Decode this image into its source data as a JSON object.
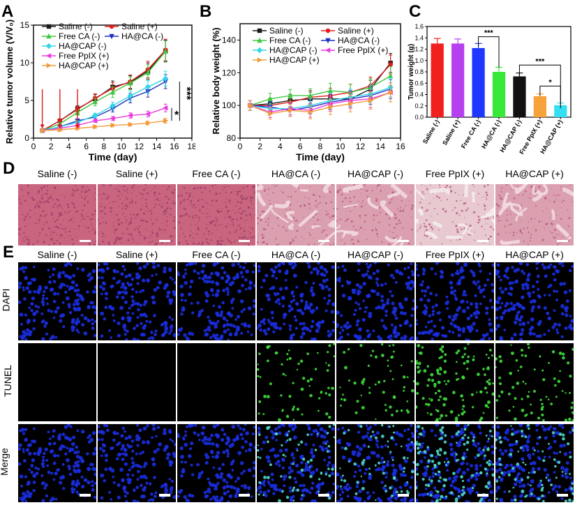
{
  "panels": {
    "A": "A",
    "B": "B",
    "C": "C",
    "D": "D",
    "E": "E"
  },
  "legend_names": [
    "Saline (-)",
    "Saline (+)",
    "Free CA (-)",
    "HA@CA (-)",
    "HA@CAP (-)",
    "Free PpIX (+)",
    "HA@CAP (+)"
  ],
  "colors": {
    "saline_neg": "#1a1a1a",
    "saline_pos": "#e31a1c",
    "free_ca": "#3ec83e",
    "ha_ca": "#1f2fbf",
    "ha_cap_neg": "#33d6e8",
    "free_ppix": "#e83be0",
    "ha_cap_pos": "#f39a3a"
  },
  "chart_data": [
    {
      "type": "line",
      "panel": "A",
      "title": "",
      "xlabel": "Time (day)",
      "ylabel": "Relative tumor volume (V/V₀)",
      "x": [
        1,
        3,
        5,
        7,
        9,
        11,
        13,
        15
      ],
      "xlim": [
        0,
        18
      ],
      "ylim": [
        0,
        15
      ],
      "xticks": [
        "0",
        "2",
        "4",
        "6",
        "8",
        "10",
        "12",
        "14",
        "16",
        "18"
      ],
      "yticks": [
        "0",
        "5",
        "10",
        "15"
      ],
      "series": [
        {
          "name": "Saline (-)",
          "values": [
            1.0,
            2.3,
            3.9,
            5.2,
            6.8,
            7.4,
            8.9,
            11.6
          ]
        },
        {
          "name": "Saline (+)",
          "values": [
            1.0,
            2.3,
            3.8,
            5.3,
            6.6,
            7.5,
            9.1,
            11.7
          ]
        },
        {
          "name": "Free CA (-)",
          "values": [
            1.0,
            1.9,
            3.4,
            4.8,
            6.1,
            7.3,
            8.7,
            11.5
          ]
        },
        {
          "name": "HA@CA (-)",
          "values": [
            1.0,
            1.5,
            2.3,
            2.8,
            3.9,
            5.3,
            6.2,
            7.5
          ]
        },
        {
          "name": "HA@CAP (-)",
          "values": [
            1.0,
            1.5,
            2.1,
            3.0,
            4.3,
            5.6,
            6.8,
            7.9
          ]
        },
        {
          "name": "Free PpIX (+)",
          "values": [
            1.0,
            1.3,
            1.7,
            2.3,
            2.6,
            3.0,
            3.2,
            4.0
          ]
        },
        {
          "name": "HA@CAP (+)",
          "values": [
            1.0,
            1.1,
            1.3,
            1.5,
            1.7,
            1.8,
            2.0,
            2.3
          ]
        }
      ],
      "annotations": [
        "*",
        "***"
      ]
    },
    {
      "type": "line",
      "panel": "B",
      "title": "",
      "xlabel": "Time (day)",
      "ylabel": "Relative body weight (%)",
      "x": [
        1,
        3,
        5,
        7,
        9,
        11,
        13,
        15
      ],
      "xlim": [
        0,
        16
      ],
      "ylim": [
        80,
        150
      ],
      "xticks": [
        "0",
        "2",
        "4",
        "6",
        "8",
        "10",
        "12",
        "14",
        "16"
      ],
      "yticks": [
        "80",
        "100",
        "120",
        "140"
      ],
      "series": [
        {
          "name": "Saline (-)",
          "values": [
            100,
            101,
            103,
            104,
            104,
            104,
            110,
            126
          ]
        },
        {
          "name": "Saline (+)",
          "values": [
            100,
            100,
            102,
            105,
            106,
            108,
            112,
            125
          ]
        },
        {
          "name": "Free CA (-)",
          "values": [
            100,
            104,
            106,
            106,
            109,
            108,
            111,
            118
          ]
        },
        {
          "name": "HA@CA (-)",
          "values": [
            100,
            99,
            97,
            99,
            102,
            104,
            106,
            110
          ]
        },
        {
          "name": "HA@CAP (-)",
          "values": [
            100,
            98,
            98,
            100,
            103,
            105,
            107,
            111
          ]
        },
        {
          "name": "Free PpIX (+)",
          "values": [
            100,
            96,
            98,
            97,
            101,
            103,
            104,
            108
          ]
        },
        {
          "name": "HA@CAP (+)",
          "values": [
            100,
            95,
            97,
            96,
            99,
            101,
            103,
            108
          ]
        }
      ]
    },
    {
      "type": "bar",
      "panel": "C",
      "title": "",
      "xlabel": "",
      "ylabel": "Tumor weight (g)",
      "categories": [
        "Saline (-)",
        "Saline (+)",
        "Free CA (-)",
        "HA@CA (-)",
        "HA@CAP (-)",
        "Free PpIX (+)",
        "HA@CAP (+)"
      ],
      "values": [
        1.3,
        1.3,
        1.22,
        0.8,
        0.72,
        0.37,
        0.21
      ],
      "errors": [
        0.09,
        0.08,
        0.08,
        0.08,
        0.06,
        0.04,
        0.04
      ],
      "ylim": [
        0,
        1.6
      ],
      "yticks": [
        "0.0",
        "0.2",
        "0.4",
        "0.6",
        "0.8",
        "1.0",
        "1.2",
        "1.4",
        "1.6"
      ],
      "annotations": [
        "***",
        "***",
        "*"
      ]
    }
  ],
  "he": {
    "label": "D",
    "titles": [
      "Saline (-)",
      "Saline (+)",
      "Free CA (-)",
      "HA@CA (-)",
      "HA@CAP (-)",
      "Free PpIX (+)",
      "HA@CAP (+)"
    ]
  },
  "tunel": {
    "label": "E",
    "titles": [
      "Saline (-)",
      "Saline (+)",
      "Free CA (-)",
      "HA@CA (-)",
      "HA@CAP (-)",
      "Free PpIX (+)",
      "HA@CAP (+)"
    ],
    "rows": [
      "DAPI",
      "TUNEL",
      "Merge"
    ],
    "green_intensity": [
      0,
      0,
      0,
      0.55,
      0.5,
      1.0,
      0.65
    ]
  }
}
